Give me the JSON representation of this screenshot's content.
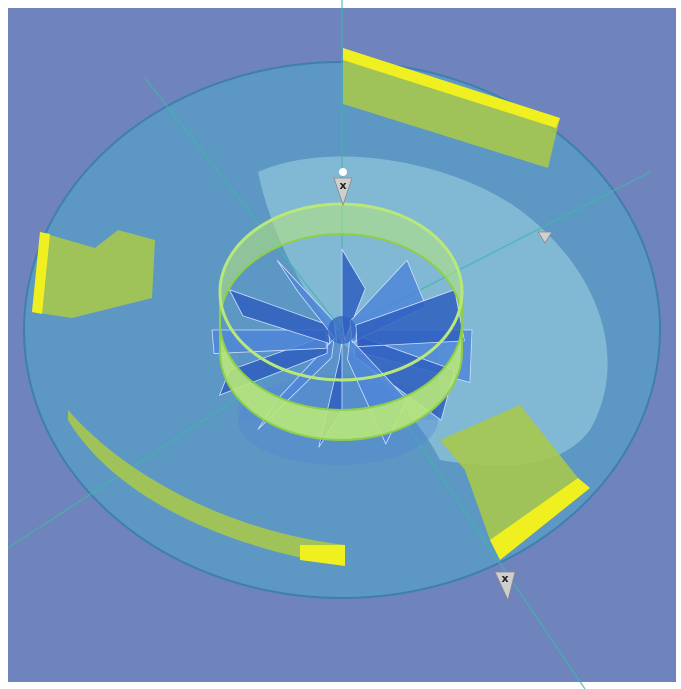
{
  "colors": {
    "background": "#6f83bd",
    "frame": "#ffffff",
    "outer_disc": "#5b9bc4",
    "outer_disc_edge": "#3f7fb0",
    "inner_dome": "#9fd4e0",
    "hub_ring": "#b8e87a",
    "hub_ring_edge": "#8fcf48",
    "blade": "#2f5fc0",
    "blade_light": "#4f86d8",
    "panel_green": "#a8c84a",
    "panel_yellow": "#f0f020",
    "axis_line": "#3fb8a8",
    "marker": "#cfcfcf"
  },
  "scene": {
    "blade_count": 12,
    "panel_count": 4,
    "axis_count": 4,
    "marker_count": 3,
    "marker_glyph": "x"
  }
}
